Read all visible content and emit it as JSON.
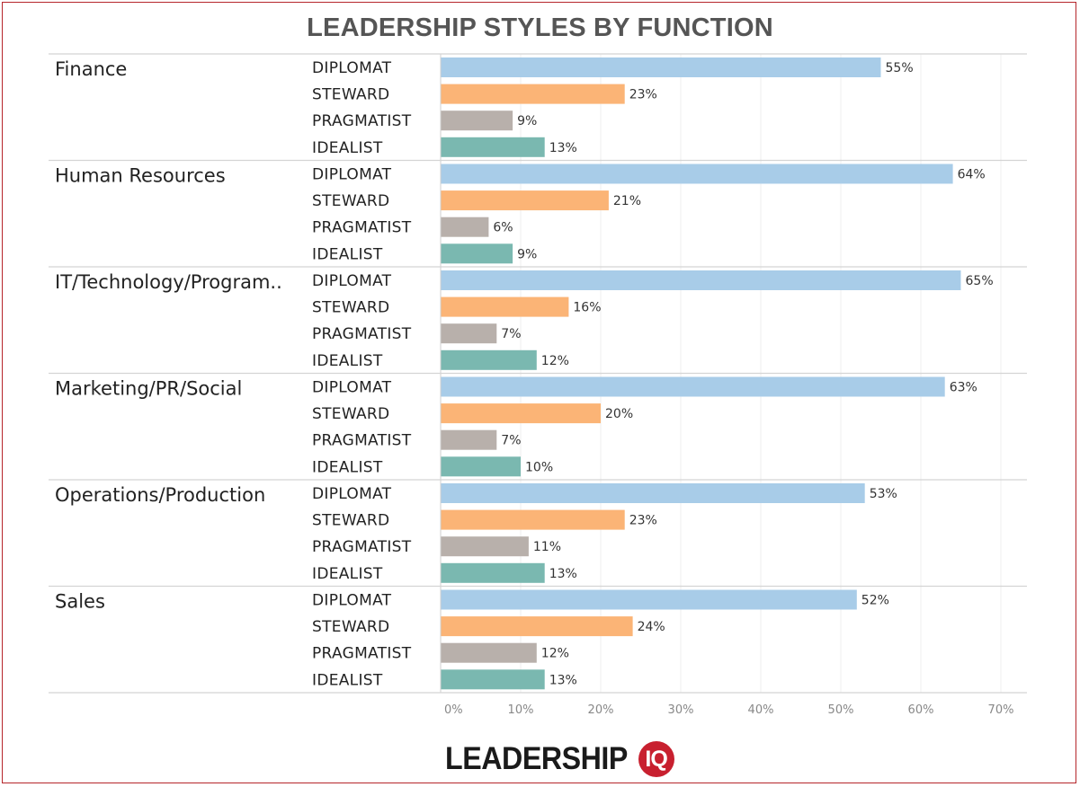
{
  "chart_data": {
    "type": "bar",
    "orientation": "horizontal",
    "title": "LEADERSHIP STYLES BY FUNCTION",
    "xlim": [
      0,
      70
    ],
    "x_ticks": [
      "0%",
      "10%",
      "20%",
      "30%",
      "40%",
      "50%",
      "60%",
      "70%"
    ],
    "grid": true,
    "value_suffix": "%",
    "styles": [
      {
        "name": "DIPLOMAT",
        "color": "#a8cce8"
      },
      {
        "name": "STEWARD",
        "color": "#fbb476"
      },
      {
        "name": "PRAGMATIST",
        "color": "#b8b0ab"
      },
      {
        "name": "IDEALIST",
        "color": "#7ab8b0"
      }
    ],
    "groups": [
      {
        "name": "Finance",
        "values": [
          55,
          23,
          9,
          13
        ]
      },
      {
        "name": "Human Resources",
        "values": [
          64,
          21,
          6,
          9
        ]
      },
      {
        "name": "IT/Technology/Program..",
        "values": [
          65,
          16,
          7,
          12
        ]
      },
      {
        "name": "Marketing/PR/Social",
        "values": [
          63,
          20,
          7,
          10
        ]
      },
      {
        "name": "Operations/Production",
        "values": [
          53,
          23,
          11,
          13
        ]
      },
      {
        "name": "Sales",
        "values": [
          52,
          24,
          12,
          13
        ]
      }
    ]
  },
  "logo": {
    "text": "LEADERSHIP",
    "badge": "IQ",
    "badge_color": "#c8202f"
  }
}
